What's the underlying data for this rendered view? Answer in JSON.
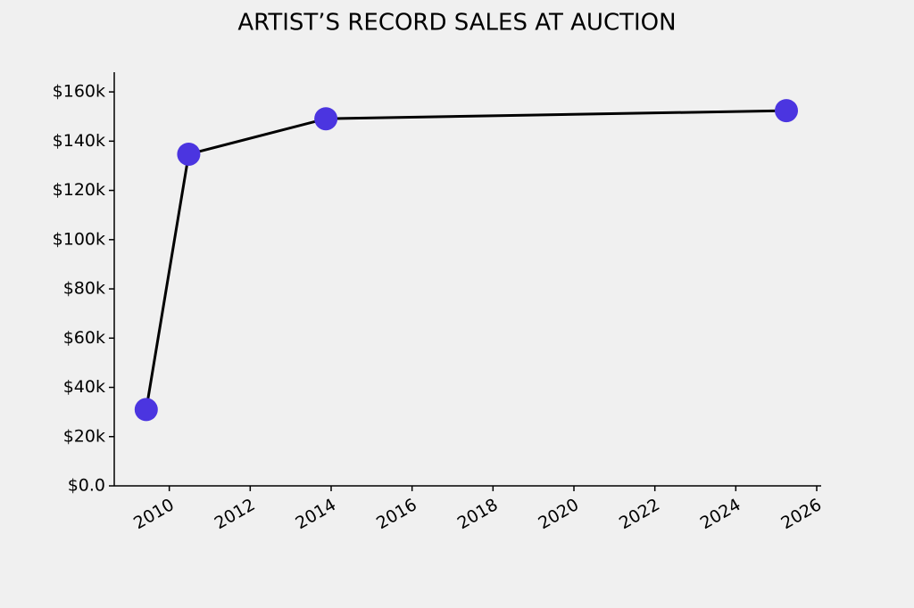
{
  "chart_data": {
    "type": "line",
    "title": "ARTIST’S RECORD SALES AT AUCTION",
    "x": [
      2009.43,
      2010.48,
      2013.87,
      2025.25
    ],
    "series": [
      {
        "color": "#4b35e0",
        "values": [
          31000,
          134700,
          149100,
          152400
        ]
      }
    ],
    "line_color": "#000000",
    "xlim": [
      2008.64,
      2026.11
    ],
    "xticks": [
      2010,
      2012,
      2014,
      2016,
      2018,
      2020,
      2022,
      2024,
      2026
    ],
    "ylim": [
      0,
      168000
    ],
    "yticks": [
      {
        "value": 0,
        "label": "$0.0"
      },
      {
        "value": 20000,
        "label": "$20k"
      },
      {
        "value": 40000,
        "label": "$40k"
      },
      {
        "value": 60000,
        "label": "$60k"
      },
      {
        "value": 80000,
        "label": "$80k"
      },
      {
        "value": 100000,
        "label": "$100k"
      },
      {
        "value": 120000,
        "label": "$120k"
      },
      {
        "value": 140000,
        "label": "$140k"
      },
      {
        "value": 160000,
        "label": "$160k"
      }
    ]
  }
}
